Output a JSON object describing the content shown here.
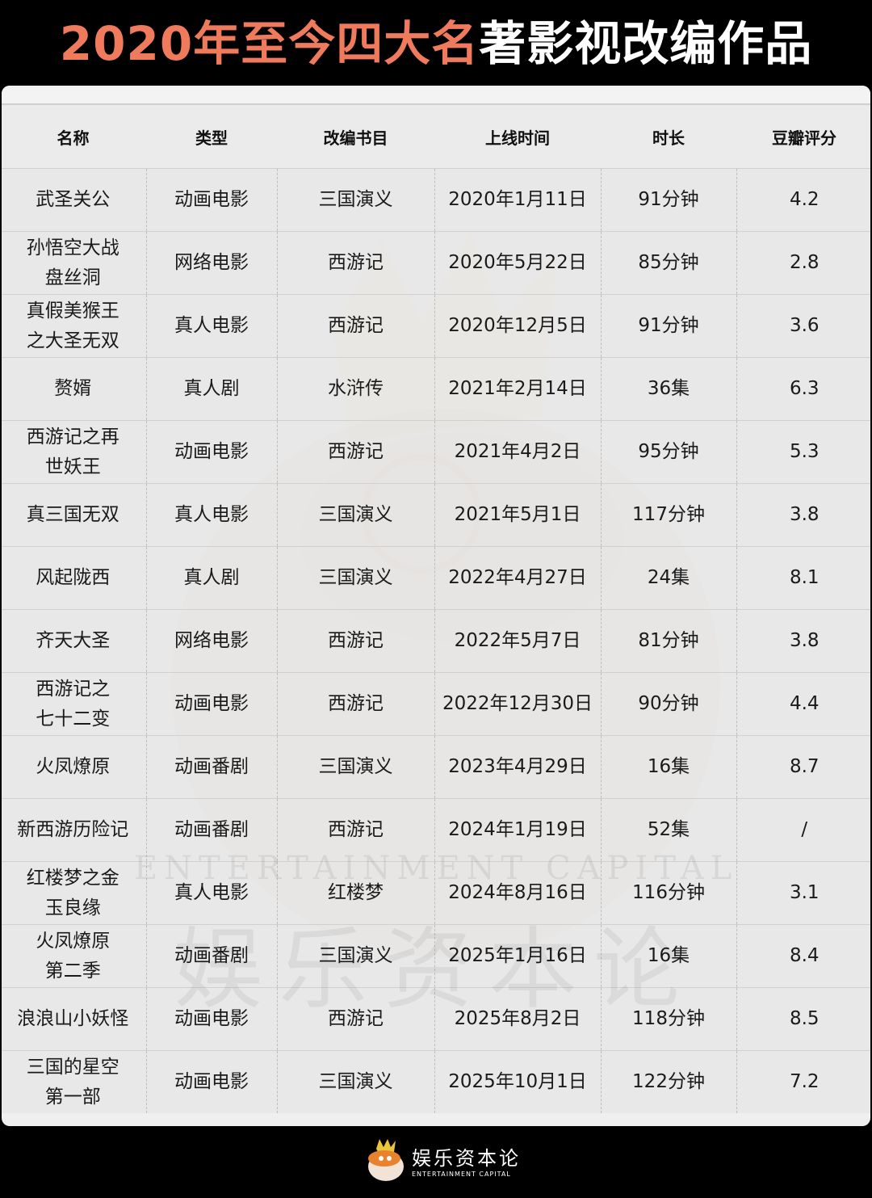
{
  "title": {
    "highlight": "2020年至今四大名",
    "rest": "著影视改编作品"
  },
  "colors": {
    "title_highlight": "#f07a5c",
    "background": "#000000",
    "table_bg": "#e8e8e8"
  },
  "table": {
    "headers": [
      "名称",
      "类型",
      "改编书目",
      "上线时间",
      "时长",
      "豆瓣评分"
    ],
    "rows": [
      [
        "武圣关公",
        "动画电影",
        "三国演义",
        "2020年1月11日",
        "91分钟",
        "4.2"
      ],
      [
        "孙悟空大战\n盘丝洞",
        "网络电影",
        "西游记",
        "2020年5月22日",
        "85分钟",
        "2.8"
      ],
      [
        "真假美猴王\n之大圣无双",
        "真人电影",
        "西游记",
        "2020年12月5日",
        "91分钟",
        "3.6"
      ],
      [
        "赘婿",
        "真人剧",
        "水浒传",
        "2021年2月14日",
        "36集",
        "6.3"
      ],
      [
        "西游记之再\n世妖王",
        "动画电影",
        "西游记",
        "2021年4月2日",
        "95分钟",
        "5.3"
      ],
      [
        "真三国无双",
        "真人电影",
        "三国演义",
        "2021年5月1日",
        "117分钟",
        "3.8"
      ],
      [
        "风起陇西",
        "真人剧",
        "三国演义",
        "2022年4月27日",
        "24集",
        "8.1"
      ],
      [
        "齐天大圣",
        "网络电影",
        "西游记",
        "2022年5月7日",
        "81分钟",
        "3.8"
      ],
      [
        "西游记之\n七十二变",
        "动画电影",
        "西游记",
        "2022年12月30日",
        "90分钟",
        "4.4"
      ],
      [
        "火凤燎原",
        "动画番剧",
        "三国演义",
        "2023年4月29日",
        "16集",
        "8.7"
      ],
      [
        "新西游历险记",
        "动画番剧",
        "西游记",
        "2024年1月19日",
        "52集",
        "/"
      ],
      [
        "红楼梦之金\n玉良缘",
        "真人电影",
        "红楼梦",
        "2024年8月16日",
        "116分钟",
        "3.1"
      ],
      [
        "火凤燎原\n第二季",
        "动画番剧",
        "三国演义",
        "2025年1月16日",
        "16集",
        "8.4"
      ],
      [
        "浪浪山小妖怪",
        "动画电影",
        "西游记",
        "2025年8月2日",
        "118分钟",
        "8.5"
      ],
      [
        "三国的星空\n第一部",
        "动画电影",
        "三国演义",
        "2025年10月1日",
        "122分钟",
        "7.2"
      ]
    ]
  },
  "watermark": {
    "en": "ENTERTAINMENT CAPITAL",
    "cn": "娱乐资本论"
  },
  "footer": {
    "logo_cn": "娱乐资本论",
    "logo_en": "ENTERTAINMENT CAPITAL"
  }
}
